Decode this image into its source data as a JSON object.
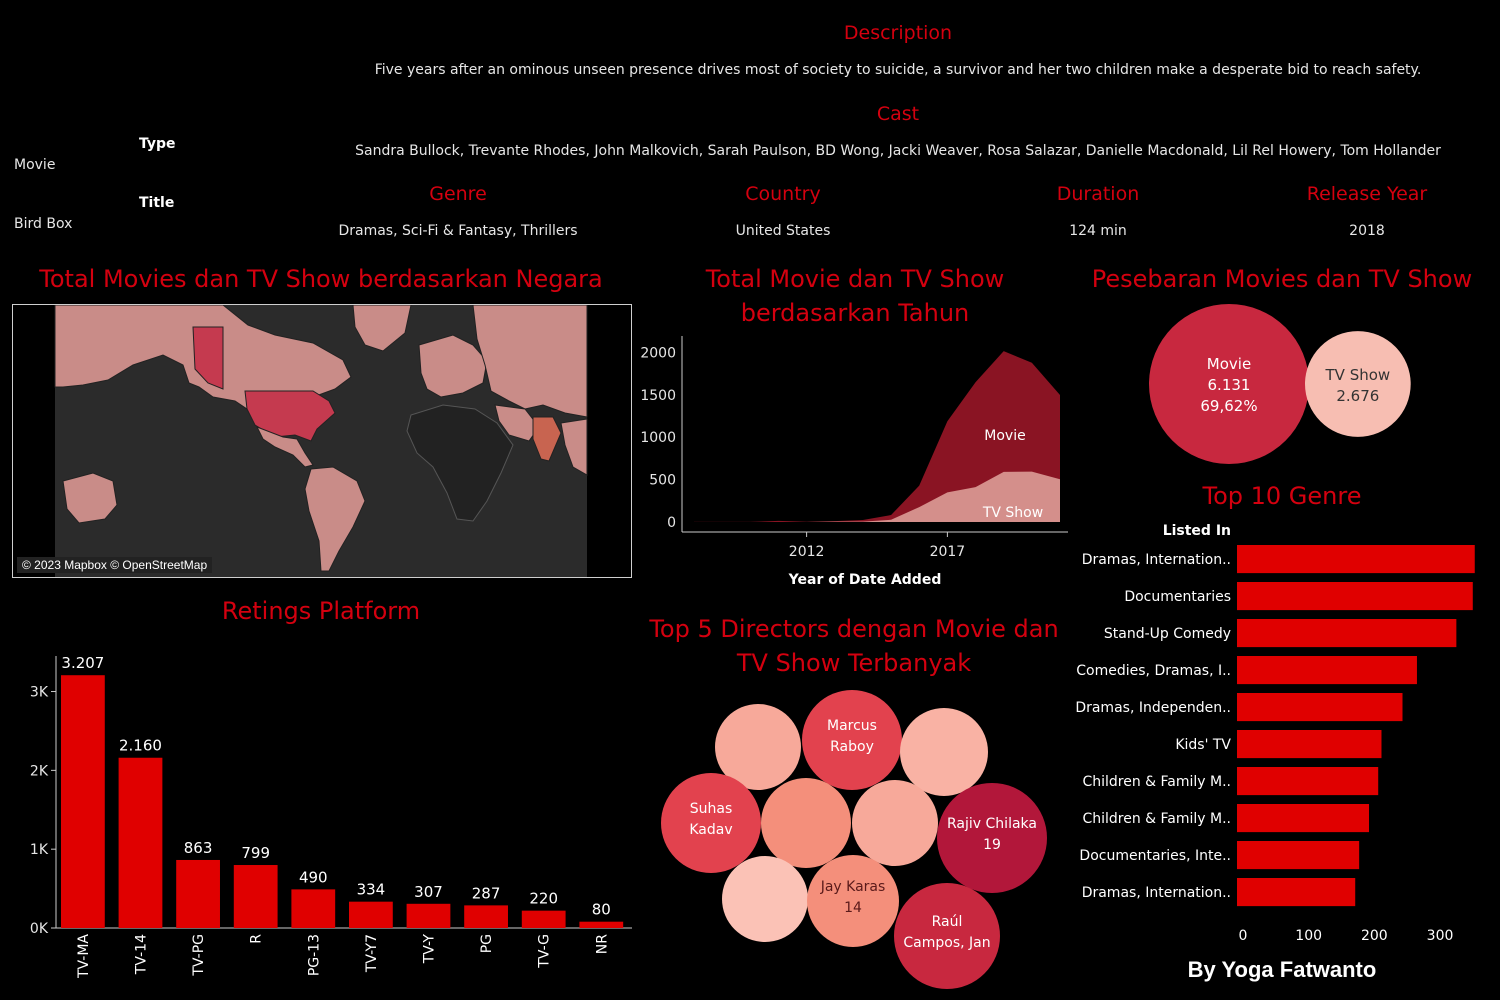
{
  "details": {
    "type_label": "Type",
    "type_value": "Movie",
    "title_label": "Title",
    "title_value": "Bird Box",
    "description_label": "Description",
    "description_value": "Five years after an ominous unseen presence drives most of society to suicide, a survivor and her two children make a desperate bid to reach safety.",
    "cast_label": "Cast",
    "cast_value": "Sandra Bullock, Trevante Rhodes, John Malkovich, Sarah Paulson, BD Wong, Jacki Weaver, Rosa Salazar, Danielle Macdonald, Lil Rel Howery, Tom Hollander",
    "genre_label": "Genre",
    "genre_value": "Dramas, Sci-Fi & Fantasy, Thrillers",
    "country_label": "Country",
    "country_value": "United States",
    "duration_label": "Duration",
    "duration_value": "124 min",
    "release_label": "Release Year",
    "release_value": "2018"
  },
  "map": {
    "title": "Total Movies dan TV Show berdasarkan Negara",
    "attribution": "© 2023 Mapbox © OpenStreetMap"
  },
  "footer": {
    "credit": "By Yoga Fatwanto"
  },
  "colors": {
    "accent": "#d4000f",
    "bar": "#e00000",
    "movie_area": "#8a1423",
    "tvshow_area": "#e0a59e",
    "map_land": "#c98c88",
    "map_us": "#c53a4f",
    "map_ocean": "#2b2b2b"
  },
  "chart_data": [
    {
      "type": "area",
      "title": "Total Movie dan TV Show berdasarkan Tahun",
      "xlabel": "Year of Date Added",
      "ylabel": "",
      "x": [
        2008,
        2009,
        2010,
        2011,
        2012,
        2013,
        2014,
        2015,
        2016,
        2017,
        2018,
        2019,
        2020,
        2021
      ],
      "series": [
        {
          "name": "Movie",
          "values": [
            1,
            2,
            1,
            13,
            3,
            6,
            19,
            56,
            253,
            839,
            1237,
            1424,
            1284,
            993
          ]
        },
        {
          "name": "TV Show",
          "values": [
            0,
            0,
            0,
            0,
            0,
            5,
            5,
            26,
            176,
            349,
            412,
            592,
            595,
            505
          ]
        }
      ],
      "xticks": [
        "2012",
        "2017"
      ],
      "yticks": [
        "0",
        "500",
        "1000",
        "1500",
        "2000"
      ],
      "ylim": [
        0,
        2100
      ]
    },
    {
      "type": "pie",
      "title": "Pesebaran Movies dan TV Show",
      "categories": [
        "Movie",
        "TV Show"
      ],
      "values": [
        6131,
        2676
      ],
      "labels": [
        [
          "Movie",
          "6.131",
          "69,62%"
        ],
        [
          "TV Show",
          "2.676"
        ]
      ]
    },
    {
      "type": "bar",
      "title": "Retings Platform",
      "categories": [
        "TV-MA",
        "TV-14",
        "TV-PG",
        "R",
        "PG-13",
        "TV-Y7",
        "TV-Y",
        "PG",
        "TV-G",
        "NR"
      ],
      "values": [
        3207,
        2160,
        863,
        799,
        490,
        334,
        307,
        287,
        220,
        80
      ],
      "value_labels": [
        "3.207",
        "2.160",
        "863",
        "799",
        "490",
        "334",
        "307",
        "287",
        "220",
        "80"
      ],
      "yticks": [
        "0K",
        "1K",
        "2K",
        "3K"
      ],
      "ylim": [
        0,
        3400
      ]
    },
    {
      "type": "bubble",
      "title": "Top 5 Directors dengan Movie dan TV Show Terbanyak",
      "labels": [
        "Rajiv Chilaka 19",
        "Raúl Campos, Jan",
        "Jay Karas 14",
        "Marcus Raboy",
        "Suhas Kadav"
      ]
    },
    {
      "type": "bar",
      "orientation": "horizontal",
      "title": "Top 10 Genre",
      "ylabel": "Listed In",
      "categories": [
        "Dramas, Internation..",
        "Documentaries",
        "Stand-Up Comedy",
        "Comedies, Dramas, I..",
        "Dramas, Independen..",
        "Kids' TV",
        "Children & Family M..",
        "Children & Family M..",
        "Documentaries, Inte..",
        "Dramas, Internation.."
      ],
      "values": [
        362,
        359,
        334,
        274,
        252,
        220,
        215,
        201,
        186,
        180
      ],
      "xticks": [
        "0",
        "100",
        "200",
        "300"
      ],
      "xlim": [
        0,
        370
      ]
    }
  ]
}
